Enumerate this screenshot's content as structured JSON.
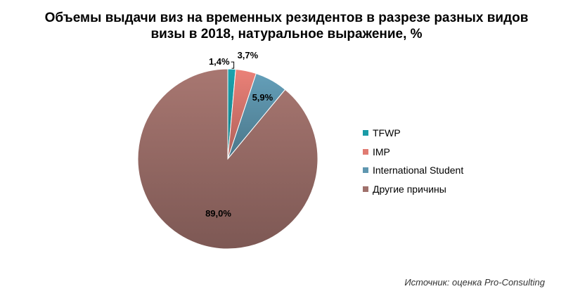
{
  "chart_data": {
    "type": "pie",
    "title_line1": "Объемы выдачи виз на временных резидентов в разрезе разных видов",
    "title_line2": "визы в 2018, натуральное выражение, %",
    "labels": [
      "TFWP",
      "IMP",
      "International Student",
      "Другие причины"
    ],
    "values": [
      1.4,
      3.7,
      5.9,
      89.0
    ],
    "data_labels": [
      "1,4%",
      "3,7%",
      "5,9%",
      "89,0%"
    ],
    "colors": [
      "#1a9ba6",
      "#e07b72",
      "#5f97b0",
      "#a0716c"
    ],
    "legend_position": "right"
  },
  "source": "Источник: оценка Pro-Consulting"
}
